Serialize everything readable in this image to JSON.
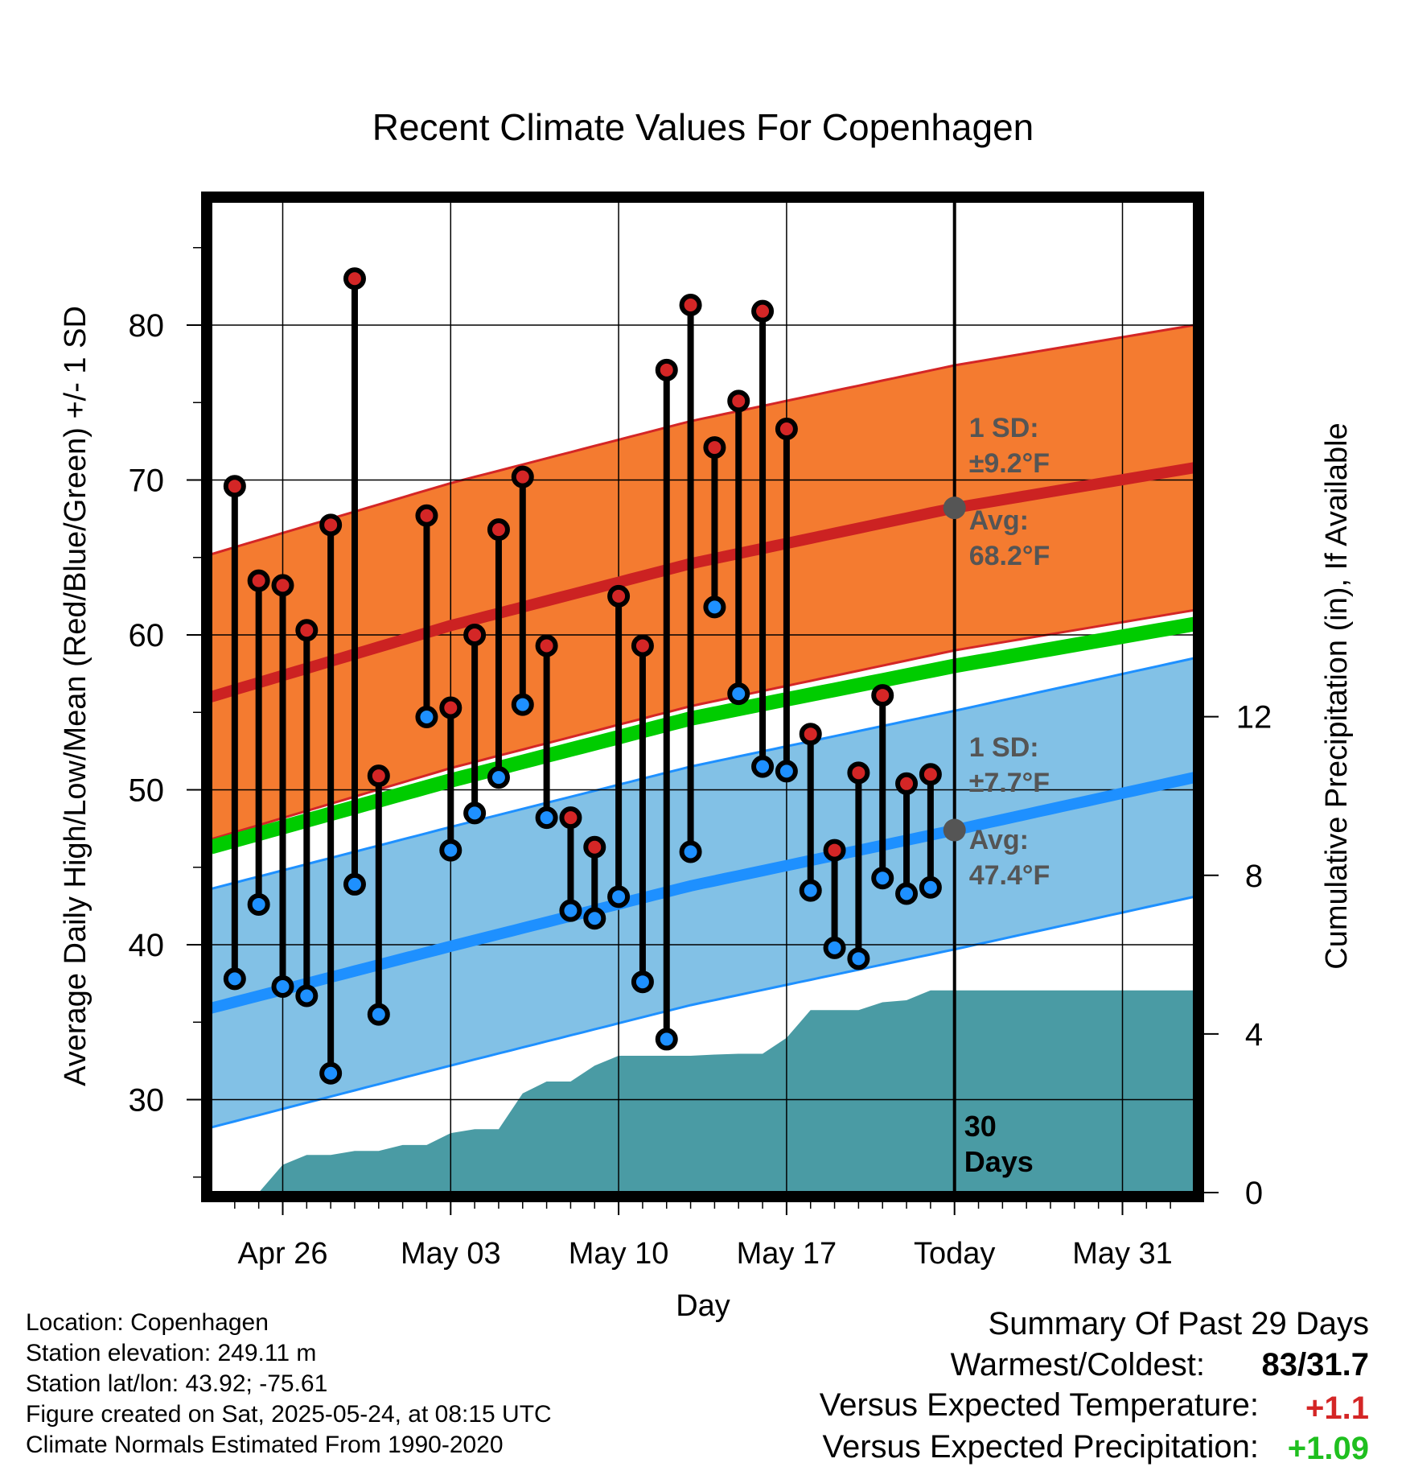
{
  "chart_data": {
    "type": "line",
    "title": "Recent Climate Values For Copenhagen",
    "xlabel": "Day",
    "ylabel": "Average Daily High/Low/Mean (Red/Blue/Green) +/- 1 SD",
    "ylabel_right": "Cumulative Precipitation (in), If Available",
    "x_range": [
      "2025-04-23",
      "2025-06-03"
    ],
    "ylim": [
      24,
      88
    ],
    "ylim_right": [
      0,
      25
    ],
    "x_ticks": [
      {
        "date": "2025-04-26",
        "label": "Apr 26"
      },
      {
        "date": "2025-05-03",
        "label": "May 03"
      },
      {
        "date": "2025-05-10",
        "label": "May 10"
      },
      {
        "date": "2025-05-17",
        "label": "May 17"
      },
      {
        "date": "2025-05-24",
        "label": "Today"
      },
      {
        "date": "2025-05-31",
        "label": "May 31"
      }
    ],
    "y_ticks": [
      "30",
      "40",
      "50",
      "60",
      "70",
      "80"
    ],
    "y_ticks_right": [
      "0",
      "4",
      "8",
      "12"
    ],
    "grid": true,
    "today": "2025-05-24",
    "today_label": "30\nDays",
    "normals": {
      "dates": [
        "2025-04-23",
        "2025-05-03",
        "2025-05-13",
        "2025-05-24",
        "2025-06-03"
      ],
      "high_avg": [
        56.0,
        60.6,
        64.6,
        68.2,
        70.8
      ],
      "high_sd": 9.2,
      "low_avg": [
        35.9,
        39.9,
        43.8,
        47.4,
        50.8
      ],
      "low_sd": 7.7,
      "mean_avg": [
        46.3,
        50.6,
        54.6,
        58.0,
        60.7
      ]
    },
    "annotations": {
      "high_sd": "1 SD:\n±9.2°F",
      "high_avg": "Avg:\n68.2°F",
      "low_sd": "1 SD:\n±7.7°F",
      "low_avg": "Avg:\n47.4°F"
    },
    "series": [
      {
        "name": "High",
        "color": "#d42626",
        "dates": [
          "2025-04-24",
          "2025-04-25",
          "2025-04-26",
          "2025-04-27",
          "2025-04-28",
          "2025-04-29",
          "2025-04-30",
          "2025-05-02",
          "2025-05-03",
          "2025-05-04",
          "2025-05-05",
          "2025-05-06",
          "2025-05-07",
          "2025-05-08",
          "2025-05-09",
          "2025-05-10",
          "2025-05-11",
          "2025-05-12",
          "2025-05-13",
          "2025-05-14",
          "2025-05-15",
          "2025-05-16",
          "2025-05-17",
          "2025-05-18",
          "2025-05-19",
          "2025-05-20",
          "2025-05-21",
          "2025-05-22",
          "2025-05-23"
        ],
        "values": [
          69.6,
          63.5,
          63.2,
          60.3,
          67.1,
          83.0,
          50.9,
          67.7,
          55.3,
          60.0,
          66.8,
          70.2,
          59.3,
          48.2,
          46.3,
          62.5,
          59.3,
          77.1,
          81.3,
          72.1,
          75.1,
          80.9,
          73.3,
          53.6,
          46.1,
          51.1,
          56.1,
          50.4,
          51.0
        ]
      },
      {
        "name": "Low",
        "color": "#1e90ff",
        "dates": [
          "2025-04-24",
          "2025-04-25",
          "2025-04-26",
          "2025-04-27",
          "2025-04-28",
          "2025-04-29",
          "2025-04-30",
          "2025-05-02",
          "2025-05-03",
          "2025-05-04",
          "2025-05-05",
          "2025-05-06",
          "2025-05-07",
          "2025-05-08",
          "2025-05-09",
          "2025-05-10",
          "2025-05-11",
          "2025-05-12",
          "2025-05-13",
          "2025-05-14",
          "2025-05-15",
          "2025-05-16",
          "2025-05-17",
          "2025-05-18",
          "2025-05-19",
          "2025-05-20",
          "2025-05-21",
          "2025-05-22",
          "2025-05-23"
        ],
        "values": [
          37.8,
          42.6,
          37.3,
          36.7,
          31.7,
          43.9,
          35.5,
          54.7,
          46.1,
          48.5,
          50.8,
          55.5,
          48.2,
          42.2,
          41.7,
          43.1,
          37.6,
          33.9,
          46.0,
          61.8,
          56.2,
          51.5,
          51.2,
          43.5,
          39.8,
          39.1,
          44.3,
          43.3,
          43.7
        ]
      },
      {
        "name": "Precipitation",
        "color": "#4a9ba4",
        "dates": [
          "2025-04-24",
          "2025-04-25",
          "2025-04-26",
          "2025-04-27",
          "2025-04-28",
          "2025-04-29",
          "2025-04-30",
          "2025-05-01",
          "2025-05-02",
          "2025-05-03",
          "2025-05-04",
          "2025-05-05",
          "2025-05-06",
          "2025-05-07",
          "2025-05-08",
          "2025-05-09",
          "2025-05-10",
          "2025-05-11",
          "2025-05-12",
          "2025-05-13",
          "2025-05-14",
          "2025-05-15",
          "2025-05-16",
          "2025-05-17",
          "2025-05-18",
          "2025-05-19",
          "2025-05-20",
          "2025-05-21",
          "2025-05-22",
          "2025-05-23",
          "2025-06-03"
        ],
        "values": [
          0,
          0,
          0.7,
          0.95,
          0.95,
          1.05,
          1.05,
          1.2,
          1.2,
          1.5,
          1.6,
          1.6,
          2.5,
          2.8,
          2.8,
          3.2,
          3.45,
          3.45,
          3.45,
          3.45,
          3.48,
          3.5,
          3.5,
          3.9,
          4.6,
          4.6,
          4.6,
          4.8,
          4.85,
          5.1,
          5.1
        ]
      }
    ]
  },
  "info": {
    "location": "Location: Copenhagen",
    "elevation": "Station elevation: 249.11 m",
    "latlon": "Station lat/lon: 43.92; -75.61",
    "created": "Figure created on Sat, 2025-05-24, at 08:15 UTC",
    "normals": "Climate Normals Estimated From 1990-2020"
  },
  "summary": {
    "title": "Summary Of Past 29 Days",
    "warm_cold_label": "Warmest/Coldest:",
    "warm_cold_value": "83/31.7",
    "temp_label": "Versus Expected Temperature:",
    "temp_value": "+1.1",
    "temp_color": "#d42626",
    "precip_label": "Versus Expected Precipitation:",
    "precip_value": "+1.09",
    "precip_color": "#1fbf1f"
  }
}
